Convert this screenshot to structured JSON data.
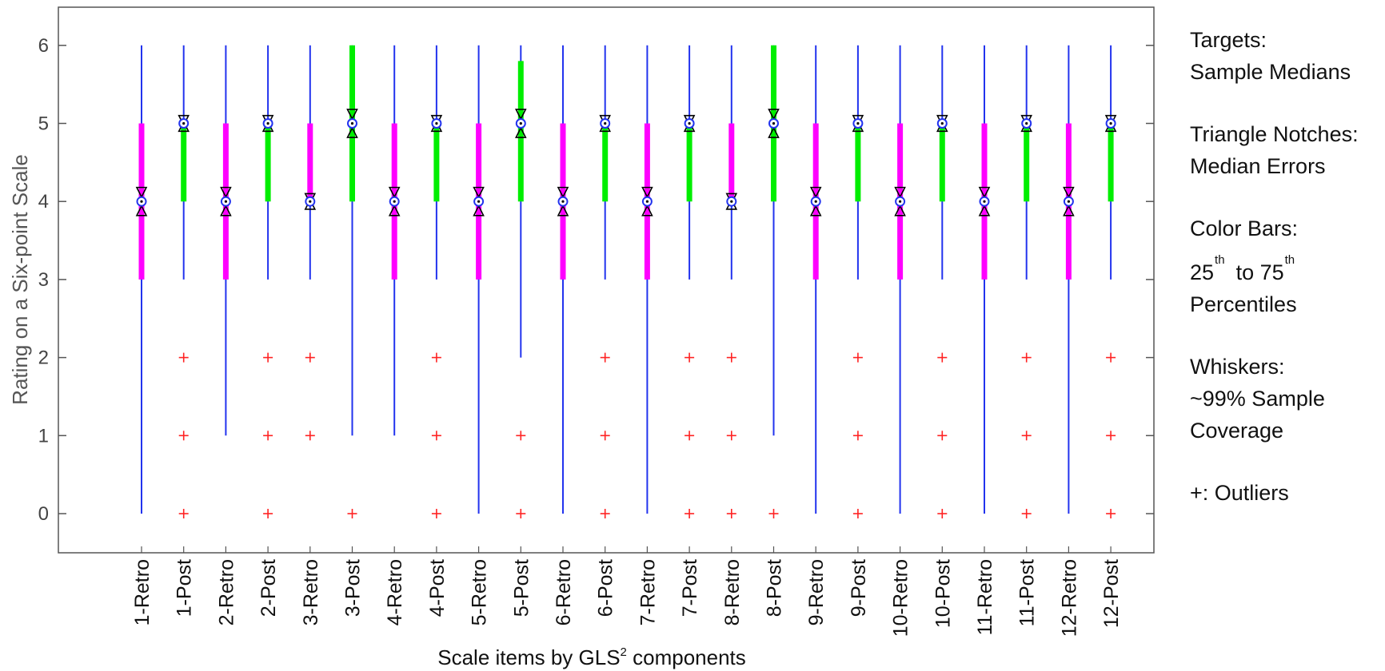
{
  "chart_data": {
    "type": "boxplot",
    "xlabel": "Scale items by GLS",
    "xlabel_sup": "2",
    "xlabel_tail": " components",
    "ylabel": "Rating on a Six-point Scale",
    "ylim": [
      -0.5,
      6.5
    ],
    "yticks": [
      0,
      1,
      2,
      3,
      4,
      5,
      6
    ],
    "grid": false,
    "colors": {
      "retro_box": "#ff00ff",
      "post_box": "#00ee00",
      "whisker": "#2233ee",
      "outlier": "#ff2222",
      "notch": "#000000",
      "median_marker": "#2233ee"
    },
    "categories": [
      "1-Retro",
      "1-Post",
      "2-Retro",
      "2-Post",
      "3-Retro",
      "3-Post",
      "4-Retro",
      "4-Post",
      "5-Retro",
      "5-Post",
      "6-Retro",
      "6-Post",
      "7-Retro",
      "7-Post",
      "8-Retro",
      "8-Post",
      "9-Retro",
      "9-Post",
      "10-Retro",
      "10-Post",
      "11-Retro",
      "11-Post",
      "12-Retro",
      "12-Post"
    ],
    "boxes": [
      {
        "q1": 3,
        "median": 4,
        "q3": 5,
        "whisker_low": 0,
        "whisker_high": 6,
        "notch": 0.18,
        "outliers": []
      },
      {
        "q1": 4,
        "median": 5,
        "q3": 5,
        "whisker_low": 3,
        "whisker_high": 6,
        "notch": 0.1,
        "outliers": [
          0,
          1,
          2
        ]
      },
      {
        "q1": 3,
        "median": 4,
        "q3": 5,
        "whisker_low": 1,
        "whisker_high": 6,
        "notch": 0.18,
        "outliers": []
      },
      {
        "q1": 4,
        "median": 5,
        "q3": 5,
        "whisker_low": 3,
        "whisker_high": 6,
        "notch": 0.1,
        "outliers": [
          0,
          1,
          2
        ]
      },
      {
        "q1": 4,
        "median": 4,
        "q3": 5,
        "whisker_low": 3,
        "whisker_high": 6,
        "notch": 0.1,
        "outliers": [
          1,
          2
        ]
      },
      {
        "q1": 4,
        "median": 5,
        "q3": 6,
        "whisker_low": 1,
        "whisker_high": 6,
        "notch": 0.18,
        "outliers": [
          0
        ]
      },
      {
        "q1": 3,
        "median": 4,
        "q3": 5,
        "whisker_low": 1,
        "whisker_high": 6,
        "notch": 0.18,
        "outliers": []
      },
      {
        "q1": 4,
        "median": 5,
        "q3": 5,
        "whisker_low": 3,
        "whisker_high": 6,
        "notch": 0.1,
        "outliers": [
          0,
          1,
          2
        ]
      },
      {
        "q1": 3,
        "median": 4,
        "q3": 5,
        "whisker_low": 0,
        "whisker_high": 6,
        "notch": 0.18,
        "outliers": []
      },
      {
        "q1": 4,
        "median": 5,
        "q3": 5.8,
        "whisker_low": 2,
        "whisker_high": 6,
        "notch": 0.18,
        "outliers": [
          0,
          1
        ]
      },
      {
        "q1": 3,
        "median": 4,
        "q3": 5,
        "whisker_low": 0,
        "whisker_high": 6,
        "notch": 0.18,
        "outliers": []
      },
      {
        "q1": 4,
        "median": 5,
        "q3": 5,
        "whisker_low": 3,
        "whisker_high": 6,
        "notch": 0.1,
        "outliers": [
          0,
          1,
          2
        ]
      },
      {
        "q1": 3,
        "median": 4,
        "q3": 5,
        "whisker_low": 0,
        "whisker_high": 6,
        "notch": 0.18,
        "outliers": []
      },
      {
        "q1": 4,
        "median": 5,
        "q3": 5,
        "whisker_low": 3,
        "whisker_high": 6,
        "notch": 0.1,
        "outliers": [
          0,
          1,
          2
        ]
      },
      {
        "q1": 4,
        "median": 4,
        "q3": 5,
        "whisker_low": 3,
        "whisker_high": 6,
        "notch": 0.1,
        "outliers": [
          0,
          1,
          2
        ]
      },
      {
        "q1": 4,
        "median": 5,
        "q3": 6,
        "whisker_low": 1,
        "whisker_high": 6,
        "notch": 0.18,
        "outliers": [
          0
        ]
      },
      {
        "q1": 3,
        "median": 4,
        "q3": 5,
        "whisker_low": 0,
        "whisker_high": 6,
        "notch": 0.18,
        "outliers": []
      },
      {
        "q1": 4,
        "median": 5,
        "q3": 5,
        "whisker_low": 3,
        "whisker_high": 6,
        "notch": 0.1,
        "outliers": [
          0,
          1,
          2
        ]
      },
      {
        "q1": 3,
        "median": 4,
        "q3": 5,
        "whisker_low": 0,
        "whisker_high": 6,
        "notch": 0.18,
        "outliers": []
      },
      {
        "q1": 4,
        "median": 5,
        "q3": 5,
        "whisker_low": 3,
        "whisker_high": 6,
        "notch": 0.1,
        "outliers": [
          0,
          1,
          2
        ]
      },
      {
        "q1": 3,
        "median": 4,
        "q3": 5,
        "whisker_low": 0,
        "whisker_high": 6,
        "notch": 0.18,
        "outliers": []
      },
      {
        "q1": 4,
        "median": 5,
        "q3": 5,
        "whisker_low": 3,
        "whisker_high": 6,
        "notch": 0.1,
        "outliers": [
          0,
          1,
          2
        ]
      },
      {
        "q1": 3,
        "median": 4,
        "q3": 5,
        "whisker_low": 0,
        "whisker_high": 6,
        "notch": 0.18,
        "outliers": []
      },
      {
        "q1": 4,
        "median": 5,
        "q3": 5,
        "whisker_low": 3,
        "whisker_high": 6,
        "notch": 0.1,
        "outliers": [
          0,
          1,
          2
        ]
      }
    ]
  },
  "legend": {
    "targets_title": "Targets:",
    "targets_desc": "Sample Medians",
    "notches_title": "Triangle Notches:",
    "notches_desc": "Median Errors",
    "colorbars_title": "Color Bars:",
    "colorbars_from": "25",
    "colorbars_from_sup": "th",
    "colorbars_to": "to 75",
    "colorbars_to_sup": "th",
    "colorbars_tail": "Percentiles",
    "whiskers_title": "Whiskers:",
    "whiskers_line1": "~99% Sample",
    "whiskers_line2": "Coverage",
    "outliers_text": "+: Outliers"
  }
}
